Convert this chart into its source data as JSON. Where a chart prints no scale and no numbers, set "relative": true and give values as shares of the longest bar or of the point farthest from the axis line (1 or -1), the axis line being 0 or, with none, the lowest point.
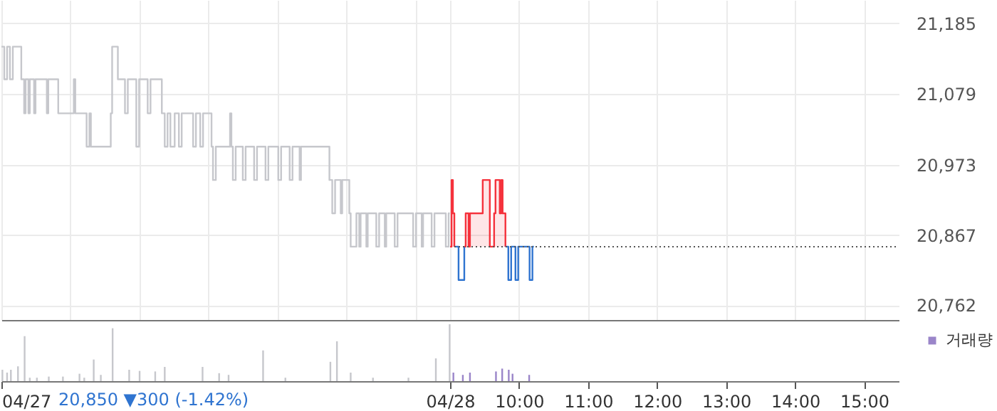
{
  "chart_data": [
    {
      "type": "line",
      "xlim": [
        2.5,
        15.5
      ],
      "xticks": [
        {
          "value": 2.5,
          "label": null
        },
        {
          "value": 3.5,
          "label": null
        },
        {
          "value": 4.5,
          "label": null
        },
        {
          "value": 5.5,
          "label": null
        },
        {
          "value": 6.5,
          "label": null
        },
        {
          "value": 7.5,
          "label": null
        },
        {
          "value": 8.5,
          "label": null
        },
        {
          "value": 9,
          "label": null
        },
        {
          "value": 10,
          "label": null
        },
        {
          "value": 11,
          "label": null
        },
        {
          "value": 12,
          "label": null
        },
        {
          "value": 13,
          "label": null
        },
        {
          "value": 14,
          "label": null
        },
        {
          "value": 15,
          "label": null
        }
      ],
      "ylim": [
        20740,
        21220
      ],
      "yticks": [
        {
          "value": 20762,
          "label": "20,762"
        },
        {
          "value": 20867,
          "label": "20,867"
        },
        {
          "value": 20973,
          "label": "20,973"
        },
        {
          "value": 21079,
          "label": "21,079"
        },
        {
          "value": 21185,
          "label": "21,185"
        }
      ],
      "grid": true,
      "tick_labels": "y",
      "ref_lines": [
        {
          "axis": "y",
          "value": 20850,
          "line_style": "dotted",
          "color": "#555555"
        }
      ],
      "series": [
        {
          "type": "step",
          "color": "#c6c7cc",
          "x": [
            2.5,
            2.541,
            2.582,
            2.623,
            2.665,
            2.788,
            2.829,
            2.85,
            2.891,
            2.911,
            2.973,
            2.994,
            3.158,
            3.179,
            3.323,
            3.549,
            3.57,
            3.734,
            3.775,
            3.796,
            4.084,
            4.104,
            4.187,
            4.29,
            4.331,
            4.454,
            4.495,
            4.619,
            4.66,
            4.824,
            4.866,
            4.907,
            4.948,
            5.01,
            5.071,
            5.112,
            5.277,
            5.318,
            5.38,
            5.421,
            5.544,
            5.565,
            5.606,
            5.812,
            5.832,
            5.853,
            5.894,
            5.997,
            6.038,
            6.161,
            6.203,
            6.326,
            6.367,
            6.511,
            6.552,
            6.676,
            6.717,
            6.82,
            6.84,
            7.252,
            7.293,
            7.334,
            7.416,
            7.437,
            7.54,
            7.56,
            7.643,
            7.684,
            7.704,
            7.787,
            7.807,
            7.931,
            7.972,
            8.054,
            8.075,
            8.198,
            8.239,
            8.465,
            8.506,
            8.589,
            8.609,
            8.733,
            8.774,
            8.938,
            8.979,
            8.995
          ],
          "values": [
            21150,
            21101,
            21150,
            21101,
            21150,
            21101,
            21050,
            21101,
            21050,
            21101,
            21050,
            21101,
            21050,
            21101,
            21050,
            21101,
            21050,
            21000,
            21050,
            21000,
            21050,
            21150,
            21101,
            21050,
            21101,
            21000,
            21101,
            21050,
            21101,
            21050,
            21000,
            21050,
            21000,
            21050,
            21000,
            21050,
            21000,
            21050,
            21000,
            21050,
            21000,
            20950,
            21000,
            21050,
            21000,
            20950,
            21000,
            20950,
            21000,
            20950,
            21000,
            20950,
            21000,
            20950,
            21000,
            20950,
            21000,
            20950,
            21000,
            20950,
            20900,
            20950,
            20900,
            20950,
            20900,
            20850,
            20900,
            20850,
            20900,
            20850,
            20900,
            20850,
            20900,
            20850,
            20900,
            20850,
            20900,
            20850,
            20900,
            20850,
            20900,
            20850,
            20900,
            20850,
            20900,
            20900
          ]
        },
        {
          "type": "area",
          "color": "#f5323c",
          "x": [
            9.0,
            9.021,
            9.041,
            9.062,
            9.123,
            9.206,
            9.226,
            9.268,
            9.288,
            9.473,
            9.576,
            9.638,
            9.658,
            9.72,
            9.741,
            9.761,
            9.802
          ],
          "values": [
            20850,
            20950,
            20900,
            20850,
            null,
            20850,
            20900,
            20850,
            20900,
            20950,
            20850,
            20900,
            20950,
            20900,
            20950,
            20900,
            20850
          ]
        },
        {
          "type": "step",
          "color": "#2f74d0",
          "x": [
            9.062,
            9.123,
            9.206,
            9.226,
            9.802,
            9.844,
            9.885,
            9.947,
            9.987,
            10.152,
            10.193,
            10.214
          ],
          "values": [
            20850,
            20800,
            20850,
            null,
            20850,
            20800,
            20850,
            20800,
            20850,
            20800,
            20850,
            20850
          ]
        }
      ]
    },
    {
      "type": "bar",
      "relative": true,
      "xlim": [
        2.5,
        15.5
      ],
      "xticks": [
        {
          "value": 2.5,
          "label": "04/27"
        },
        {
          "value": 9,
          "label": "04/28"
        },
        {
          "value": 10,
          "label": "10:00"
        },
        {
          "value": 11,
          "label": "11:00"
        },
        {
          "value": 12,
          "label": "12:00"
        },
        {
          "value": 13,
          "label": "13:00"
        },
        {
          "value": 14,
          "label": "14:00"
        },
        {
          "value": 15,
          "label": "15:00"
        }
      ],
      "tick_labels": "x",
      "legend": "top right",
      "annotations": [
        "20,850 ▼300 (-1.42%)"
      ],
      "series": [
        {
          "color": "#c6c7cc",
          "x": [
            2.514,
            2.582,
            2.637,
            2.74,
            2.836,
            2.911,
            3.014,
            3.186,
            3.391,
            3.631,
            3.7,
            3.837,
            3.94,
            4.111,
            4.351,
            4.502,
            4.728,
            4.866,
            5.414,
            5.654,
            5.791,
            6.291,
            6.614,
            7.266,
            7.361,
            7.56,
            7.883,
            8.397,
            8.794,
            8.994
          ],
          "values": [
            0.2,
            0.15,
            0.2,
            0.26,
            0.79,
            0.06,
            0.06,
            0.08,
            0.08,
            0.13,
            0.06,
            0.38,
            0.11,
            0.93,
            0.2,
            0.18,
            0.17,
            0.25,
            0.25,
            0.14,
            0.11,
            0.54,
            0.06,
            0.34,
            0.7,
            0.15,
            0.06,
            0.06,
            0.4,
            1
          ]
        },
        {
          "name": "거래량",
          "color": "#9a85c9",
          "x": [
            9.048,
            9.185,
            9.288,
            9.665,
            9.755,
            9.85,
            9.905,
            10.146
          ],
          "values": [
            0.15,
            0.11,
            0.15,
            0.17,
            0.22,
            0.2,
            0.13,
            0.11
          ]
        }
      ]
    }
  ]
}
